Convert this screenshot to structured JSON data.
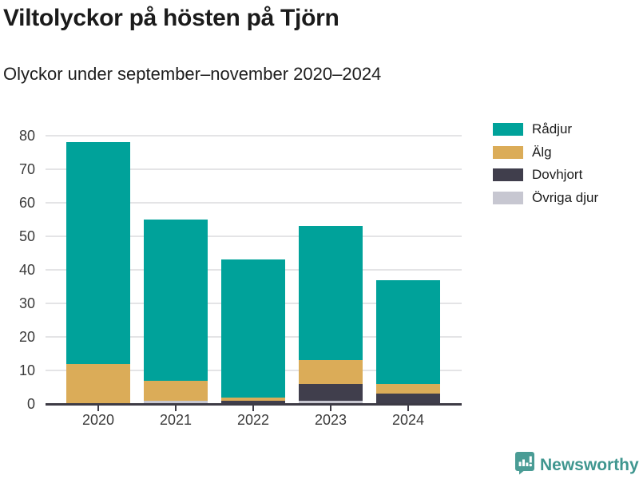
{
  "header": {
    "title": "Viltolyckor på hösten på Tjörn",
    "subtitle": "Olyckor under september–november 2020–2024"
  },
  "chart_data": {
    "type": "bar",
    "stacked": true,
    "title": "Viltolyckor på hösten på Tjörn",
    "subtitle": "Olyckor under september–november 2020–2024",
    "categories": [
      "2020",
      "2021",
      "2022",
      "2023",
      "2024"
    ],
    "series": [
      {
        "name": "Rådjur",
        "color": "#00a29a",
        "values": [
          66,
          48,
          41,
          40,
          31
        ]
      },
      {
        "name": "Älg",
        "color": "#dbac58",
        "values": [
          12,
          6,
          1,
          7,
          3
        ]
      },
      {
        "name": "Dovhjort",
        "color": "#403e4c",
        "values": [
          0,
          0,
          1,
          5,
          3
        ]
      },
      {
        "name": "Övriga djur",
        "color": "#c7c7d1",
        "values": [
          0,
          1,
          0,
          1,
          0
        ]
      }
    ],
    "stack_order_bottom_to_top": [
      "Övriga djur",
      "Dovhjort",
      "Älg",
      "Rådjur"
    ],
    "totals": [
      78,
      55,
      43,
      53,
      37
    ],
    "xlabel": "",
    "ylabel": "",
    "ylim": [
      0,
      80
    ],
    "yticks": [
      0,
      10,
      20,
      30,
      40,
      50,
      60,
      70,
      80
    ],
    "grid": "horizontal",
    "legend_position": "top-right"
  },
  "legend": {
    "items": [
      {
        "label": "Rådjur",
        "color": "#00a29a"
      },
      {
        "label": "Älg",
        "color": "#dbac58"
      },
      {
        "label": "Dovhjort",
        "color": "#403e4c"
      },
      {
        "label": "Övriga djur",
        "color": "#c7c7d1"
      }
    ]
  },
  "footer": {
    "brand": "Newsworthy",
    "logo_icon": "newsworthy-speech-bubble-bar-chart-icon",
    "brand_color": "#3f968f",
    "icon_color": "#4a9c95"
  },
  "colors": {
    "background": "#ffffff",
    "grid": "#e4e4e6",
    "axis": "#3d3b45",
    "title_text": "#1b1b1b",
    "tick_label_text": "#3a3a3a"
  }
}
